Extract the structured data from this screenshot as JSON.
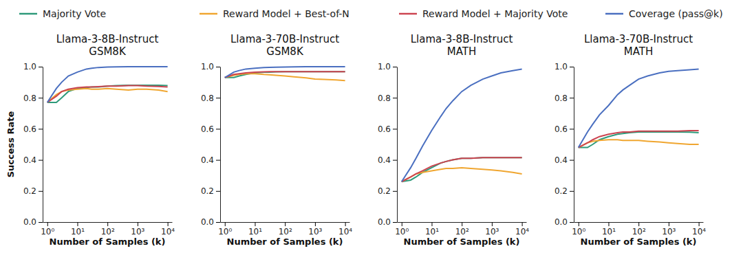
{
  "chart_data": [
    {
      "type": "line",
      "title": "Llama-3-8B-Instruct\nGSM8K",
      "x_label": "Number of Samples (k)",
      "y_label": "Success Rate",
      "log": "x",
      "grid": false,
      "legend": "top",
      "x": [
        1,
        2,
        3,
        5,
        10,
        20,
        30,
        50,
        100,
        200,
        500,
        1000,
        2000,
        5000,
        10000
      ],
      "xlim": [
        0.7,
        14000
      ],
      "xticks": [
        {
          "value": 1,
          "label": "10⁰"
        },
        {
          "value": 10,
          "label": "10¹"
        },
        {
          "value": 100,
          "label": "10²"
        },
        {
          "value": 1000,
          "label": "10³"
        },
        {
          "value": 10000,
          "label": "10⁴"
        }
      ],
      "ylim": [
        0,
        1
      ],
      "yticks": [
        {
          "value": 0,
          "label": "0.0"
        },
        0.2,
        0.4,
        0.6,
        0.8,
        {
          "value": 1,
          "label": "1.0"
        }
      ],
      "series": [
        {
          "name": "Majority Vote",
          "color": "#2e9a7a",
          "values": [
            0.77,
            0.77,
            0.8,
            0.84,
            0.86,
            0.865,
            0.87,
            0.87,
            0.875,
            0.878,
            0.88,
            0.88,
            0.88,
            0.88,
            0.878
          ]
        },
        {
          "name": "Reward Model + Best-of-N",
          "color": "#f0a630",
          "values": [
            0.77,
            0.82,
            0.84,
            0.85,
            0.855,
            0.86,
            0.855,
            0.855,
            0.86,
            0.855,
            0.85,
            0.855,
            0.855,
            0.85,
            0.84
          ]
        },
        {
          "name": "Reward Model + Majority Vote",
          "color": "#cc4450",
          "values": [
            0.77,
            0.81,
            0.84,
            0.855,
            0.865,
            0.87,
            0.87,
            0.872,
            0.875,
            0.875,
            0.878,
            0.878,
            0.875,
            0.873,
            0.87
          ]
        },
        {
          "name": "Coverage (pass@k)",
          "color": "#4a6fc0",
          "values": [
            0.77,
            0.86,
            0.9,
            0.94,
            0.965,
            0.985,
            0.99,
            0.995,
            0.998,
            0.999,
            1,
            1,
            1,
            1,
            1
          ]
        }
      ]
    },
    {
      "type": "line",
      "title": "Llama-3-70B-Instruct\nGSM8K",
      "x_label": "Number of Samples (k)",
      "log": "x",
      "grid": false,
      "x": [
        1,
        2,
        3,
        5,
        10,
        20,
        30,
        50,
        100,
        200,
        500,
        1000,
        2000,
        5000,
        10000
      ],
      "xlim": [
        0.7,
        14000
      ],
      "xticks": [
        {
          "value": 1,
          "label": "10⁰"
        },
        {
          "value": 10,
          "label": "10¹"
        },
        {
          "value": 100,
          "label": "10²"
        },
        {
          "value": 1000,
          "label": "10³"
        },
        {
          "value": 10000,
          "label": "10⁴"
        }
      ],
      "ylim": [
        0,
        1
      ],
      "yticks": [
        {
          "value": 0,
          "label": "0.0"
        },
        0.2,
        0.4,
        0.6,
        0.8,
        {
          "value": 1,
          "label": "1.0"
        }
      ],
      "series": [
        {
          "color": "#2e9a7a",
          "values": [
            0.93,
            0.93,
            0.94,
            0.95,
            0.96,
            0.965,
            0.965,
            0.967,
            0.968,
            0.968,
            0.968,
            0.968,
            0.968,
            0.968,
            0.968
          ]
        },
        {
          "color": "#f0a630",
          "values": [
            0.93,
            0.945,
            0.95,
            0.955,
            0.955,
            0.95,
            0.948,
            0.945,
            0.94,
            0.935,
            0.928,
            0.92,
            0.918,
            0.915,
            0.91
          ]
        },
        {
          "color": "#cc4450",
          "values": [
            0.93,
            0.95,
            0.955,
            0.96,
            0.965,
            0.967,
            0.968,
            0.968,
            0.968,
            0.968,
            0.968,
            0.968,
            0.968,
            0.968,
            0.968
          ]
        },
        {
          "color": "#4a6fc0",
          "values": [
            0.93,
            0.965,
            0.975,
            0.985,
            0.99,
            0.995,
            0.996,
            0.997,
            0.998,
            0.999,
            1,
            1,
            1,
            1,
            1
          ]
        }
      ]
    },
    {
      "type": "line",
      "title": "Llama-3-8B-Instruct\nMATH",
      "x_label": "Number of Samples (k)",
      "log": "x",
      "grid": false,
      "x": [
        1,
        2,
        3,
        5,
        10,
        20,
        30,
        50,
        100,
        200,
        500,
        1000,
        2000,
        5000,
        10000
      ],
      "xlim": [
        0.7,
        14000
      ],
      "xticks": [
        {
          "value": 1,
          "label": "10⁰"
        },
        {
          "value": 10,
          "label": "10¹"
        },
        {
          "value": 100,
          "label": "10²"
        },
        {
          "value": 1000,
          "label": "10³"
        },
        {
          "value": 10000,
          "label": "10⁴"
        }
      ],
      "ylim": [
        0,
        1
      ],
      "yticks": [
        {
          "value": 0,
          "label": "0.0"
        },
        0.2,
        0.4,
        0.6,
        0.8,
        {
          "value": 1,
          "label": "1.0"
        }
      ],
      "series": [
        {
          "color": "#2e9a7a",
          "values": [
            0.26,
            0.27,
            0.29,
            0.32,
            0.35,
            0.38,
            0.39,
            0.4,
            0.41,
            0.41,
            0.415,
            0.415,
            0.415,
            0.415,
            0.415
          ]
        },
        {
          "color": "#f0a630",
          "values": [
            0.26,
            0.29,
            0.31,
            0.32,
            0.33,
            0.34,
            0.345,
            0.345,
            0.35,
            0.345,
            0.34,
            0.335,
            0.33,
            0.32,
            0.31
          ]
        },
        {
          "color": "#cc4450",
          "values": [
            0.26,
            0.29,
            0.31,
            0.33,
            0.36,
            0.38,
            0.39,
            0.4,
            0.41,
            0.41,
            0.415,
            0.415,
            0.415,
            0.415,
            0.415
          ]
        },
        {
          "color": "#4a6fc0",
          "values": [
            0.26,
            0.35,
            0.41,
            0.49,
            0.59,
            0.68,
            0.73,
            0.78,
            0.84,
            0.88,
            0.92,
            0.94,
            0.96,
            0.975,
            0.985
          ]
        }
      ]
    },
    {
      "type": "line",
      "title": "Llama-3-70B-Instruct\nMATH",
      "x_label": "Number of Samples (k)",
      "log": "x",
      "grid": false,
      "x": [
        1,
        2,
        3,
        5,
        10,
        20,
        30,
        50,
        100,
        200,
        500,
        1000,
        2000,
        5000,
        10000
      ],
      "xlim": [
        0.7,
        14000
      ],
      "xticks": [
        {
          "value": 1,
          "label": "10⁰"
        },
        {
          "value": 10,
          "label": "10¹"
        },
        {
          "value": 100,
          "label": "10²"
        },
        {
          "value": 1000,
          "label": "10³"
        },
        {
          "value": 10000,
          "label": "10⁴"
        }
      ],
      "ylim": [
        0,
        1
      ],
      "yticks": [
        {
          "value": 0,
          "label": "0.0"
        },
        0.2,
        0.4,
        0.6,
        0.8,
        {
          "value": 1,
          "label": "1.0"
        }
      ],
      "series": [
        {
          "color": "#2e9a7a",
          "values": [
            0.48,
            0.48,
            0.5,
            0.53,
            0.55,
            0.565,
            0.57,
            0.575,
            0.58,
            0.58,
            0.58,
            0.58,
            0.58,
            0.578,
            0.575
          ]
        },
        {
          "color": "#f0a630",
          "values": [
            0.48,
            0.51,
            0.52,
            0.525,
            0.53,
            0.53,
            0.525,
            0.525,
            0.525,
            0.52,
            0.515,
            0.51,
            0.505,
            0.5,
            0.5
          ]
        },
        {
          "color": "#cc4450",
          "values": [
            0.48,
            0.51,
            0.53,
            0.55,
            0.565,
            0.575,
            0.58,
            0.58,
            0.585,
            0.585,
            0.585,
            0.585,
            0.585,
            0.588,
            0.588
          ]
        },
        {
          "color": "#4a6fc0",
          "values": [
            0.48,
            0.58,
            0.63,
            0.69,
            0.75,
            0.82,
            0.85,
            0.88,
            0.92,
            0.94,
            0.96,
            0.97,
            0.975,
            0.98,
            0.985
          ]
        }
      ]
    }
  ]
}
